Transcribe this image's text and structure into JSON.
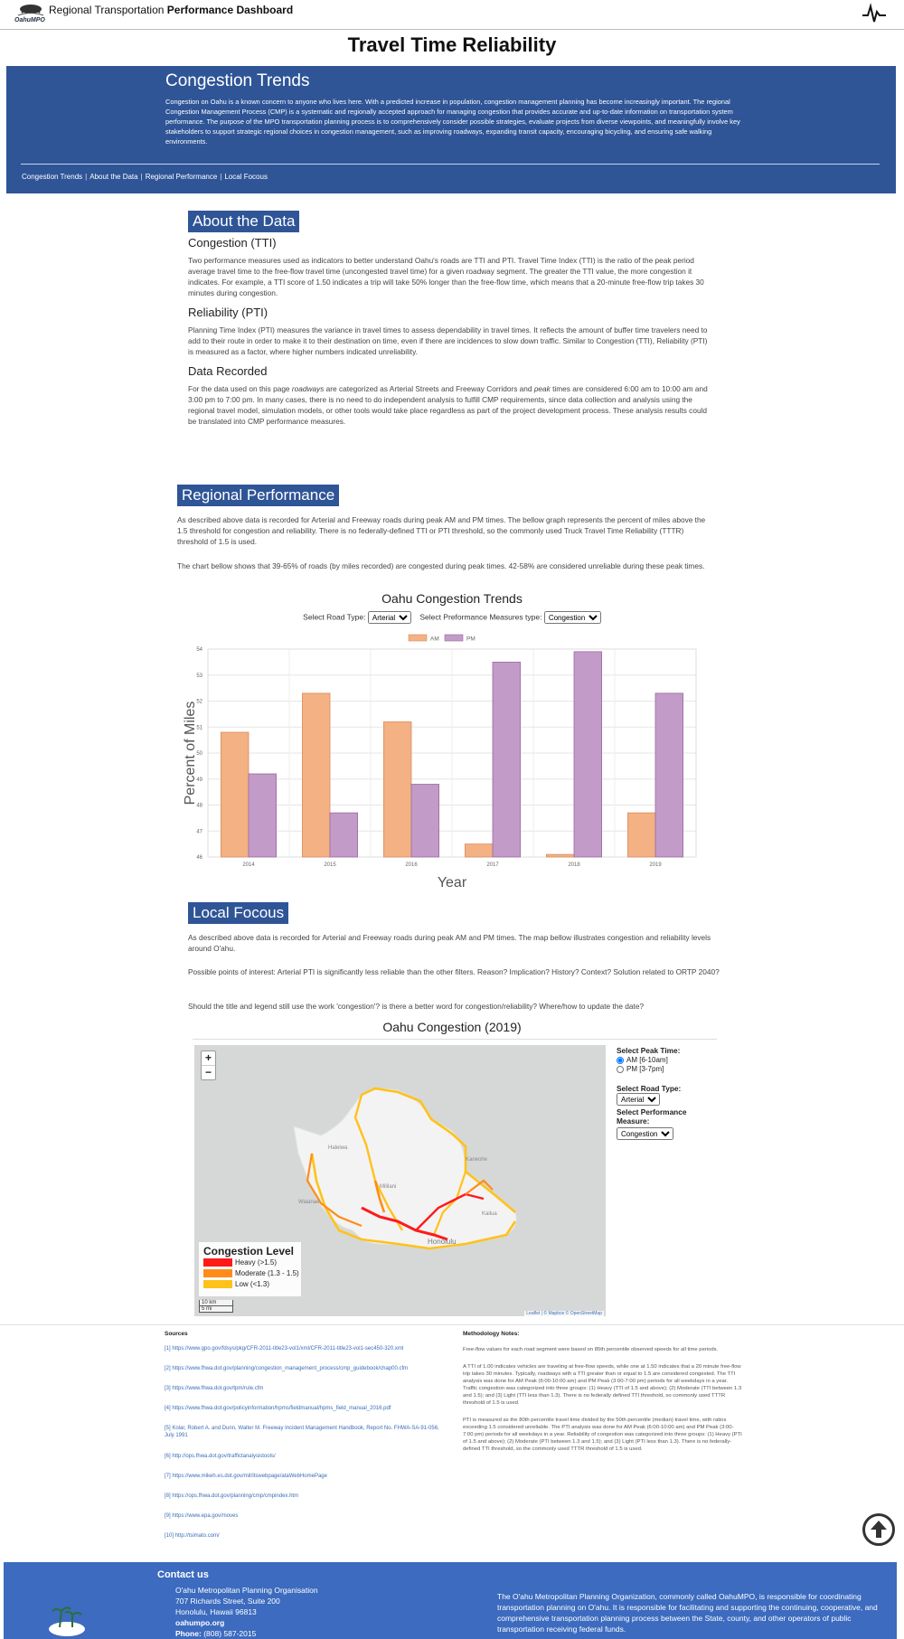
{
  "header": {
    "logo_text": "OahuMPO",
    "title_prefix": "Regional Transportation",
    "title_bold": "Performance Dashboard",
    "page_title": "Travel Time Reliability"
  },
  "hero": {
    "title": "Congestion Trends",
    "body": "Congestion on Oahu is a known concern to anyone who lives here. With a predicted increase in population, congestion management planning has become increasingly important. The regional Congestion Management Process (CMP) is a systematic and regionally accepted approach for managing congestion that provides accurate and up-to-date information on transportation system performance. The purpose of the MPO transportation planning process is to comprehensively consider possible strategies, evaluate projects from diverse viewpoints, and meaningfully involve key stakeholders to support strategic regional choices in congestion management, such as improving roadways, expanding transit capacity, encouraging bicycling, and ensuring safe walking environments.",
    "nav": [
      "Congestion Trends",
      "About the Data",
      "Regional Performance",
      "Local Focous"
    ]
  },
  "about": {
    "heading": "About the Data",
    "tti_title": "Congestion (TTI)",
    "tti_text": "Two performance measures used as indicators to better understand Oahu's roads are TTI and PTI.  Travel Time Index (TTI) is the ratio of the peak period average travel time to the free-flow travel time (uncongested travel time) for a given roadway segment.  The greater the TTI value, the more congestion it indicates. For example, a TTI score of 1.50 indicates a trip will take 50% longer than the free-flow time, which means that a 20-minute free-flow trip takes 30 minutes during congestion.",
    "pti_title": "Reliability (PTI)",
    "pti_text": "Planning Time Index (PTI) measures the variance in travel times to assess dependability in travel times. It reflects the amount of buffer time travelers need to add to their route in order to make it to their destination on time, even if there are incidences to slow down traffic. Similar to Congestion (TTI), Reliability (PTI) is measured as a factor, where higher numbers indicated unreliability.",
    "data_title": "Data Recorded",
    "data_text_a": "For the data used on this page ",
    "data_text_b": "roadways",
    "data_text_c": " are categorized as Arterial Streets and Freeway Corridors and ",
    "data_text_d": "peak",
    "data_text_e": " times are considered 6:00 am to 10:00 am and 3:00 pm to 7:00 pm.  In many cases, there is no need to do independent analysis to fulfill CMP requirements, since data collection and analysis using the regional travel model, simulation models, or other tools would take place regardless as part of the project development process. These analysis results could be translated into CMP performance measures."
  },
  "regional": {
    "heading": "Regional Performance",
    "p1": "As described above data is recorded for Arterial and Freeway roads during peak AM and PM times. The bellow graph represents the percent of miles above the 1.5 threshold for congestion and reliability. There is no federally-defined TTI or PTI threshold, so the commonly used Truck Travel Time Reliability (TTTR) threshold of 1.5 is used.",
    "p2": "The chart bellow shows that 39-65% of roads (by miles recorded) are congested during peak times. 42-58% are considered unreliable during these peak times.",
    "road_label": "Select Road Type:",
    "road_value": "Arterial",
    "measure_label": "Select Preformance Measures type:",
    "measure_value": "Congestion"
  },
  "chart_data": {
    "type": "bar",
    "title": "Oahu Congestion Trends",
    "xlabel": "Year",
    "ylabel": "Percent of Miles",
    "categories": [
      "2014",
      "2015",
      "2016",
      "2017",
      "2018",
      "2019"
    ],
    "series": [
      {
        "name": "AM",
        "color": "#f4b183",
        "stroke": "#d98c5f",
        "values": [
          50.8,
          52.3,
          51.2,
          46.5,
          46.1,
          47.7
        ]
      },
      {
        "name": "PM",
        "color": "#c39bc8",
        "stroke": "#9a6aa0",
        "values": [
          49.2,
          47.7,
          48.8,
          53.5,
          53.9,
          52.3
        ]
      }
    ],
    "ylim": [
      46,
      54
    ],
    "yticks": [
      "46",
      "47",
      "48",
      "49",
      "50",
      "51",
      "52",
      "53",
      "54"
    ],
    "grid": true,
    "legend": "top-center"
  },
  "local": {
    "heading": "Local Focous",
    "p1": "As described above data is recorded for Arterial and Freeway roads during peak AM and PM times. The map bellow illustrates congestion and reliability levels around O'ahu.",
    "p2": "Possible points of interest: Arterial PTI is significantly less reliable than the other filters. Reason? Implication? History? Context? Solution related to ORTP 2040?",
    "p3": "Should the title and legend still use the work 'congestion'? is there a better word for congestion/reliability? Where/how to update the date?",
    "map_title": "Oahu Congestion (2019)",
    "zoom_in": "+",
    "zoom_out": "−",
    "legend_title": "Congestion Level",
    "legend_items": [
      {
        "label": "Heavy (>1.5)",
        "color": "#ff1a1a"
      },
      {
        "label": "Moderate (1.3 - 1.5)",
        "color": "#ff8c1a"
      },
      {
        "label": "Low (<1.3)",
        "color": "#ffc21a"
      }
    ],
    "scale_km": "10 km",
    "scale_mi": "5 mi",
    "attribution": "Leaflet | © Mapbox © OpenStreetMap",
    "place_labels": [
      "Haleiwa",
      "Kaneohe",
      "Mililani",
      "Waianae",
      "Honolulu",
      "Kailua"
    ],
    "peak_label": "Select Peak Time:",
    "peak_am": "AM [6-10am]",
    "peak_pm": "PM [3-7pm]",
    "road_label": "Select Road Type:",
    "road_value": "Arterial",
    "measure_label": "Select Performance Measure:",
    "measure_value": "Congestion"
  },
  "sources": {
    "title": "Sources",
    "items": [
      "[1] https://www.gpo.gov/fdsys/pkg/CFR-2011-title23-vol1/xml/CFR-2011-title23-vol1-sec450-320.xml",
      "[2] https://www.fhwa.dot.gov/planning/congestion_management_process/cmp_guidebook/chap00.cfm",
      "[3] https://www.fhwa.dot.gov/tpm/rule.cfm",
      "[4] https://www.fhwa.dot.gov/policyinformation/hpms/fieldmanual/hpms_field_manual_2016.pdf",
      "[5] Kolar, Robert A. and Dunn, Walter M. Freeway Incident Management Handbook, Report No. FHWA-SA-91-056, July 1991",
      "[6] http://ops.fhwa.dot.gov/traffictanalysistools/",
      "[7] https://www.mikeh.es.dot.gov/mit/itswebpage/ataWebHomePage",
      "[8] https://ops.fhwa.dot.gov/planning/cmp/cmpindex.htm",
      "[9] https://www.epa.gov/moves",
      "[10] http://tsimato.com/"
    ]
  },
  "methodology": {
    "title": "Methodology Notes:",
    "p1": "Free-flow values for each road segment were based on 85th percentile observed speeds for all time periods.",
    "p2": "A TTI of 1.00 indicates vehicles are traveling at free-flow speeds, while one at 1.50 indicates that a 20 minute free-flow trip takes 30 minutes. Typically, roadways with a TTI greater than or equal to 1.5 are considered congested. The TTI analysis was done for AM Peak (6:00-10:00 am) and PM Peak (3:00-7:00 pm) periods for all weekdays in a year. Traffic congestion was categorized into three groups: (1) Heavy (TTI of 1.5 and above); (2) Moderate (TTI between 1.3 and 1.5); and (3) Light (TTI less than 1.3). There is no federally defined TTI threshold, so commonly used TTTR threshold of 1.5 is used.",
    "p3": "PTI is measured as the 80th percentile travel time divided by the 50th percentile (median) travel time, with ratios exceeding 1.5 considered unreliable. The PTI analysis was done for AM Peak (6:00-10:00 am) and PM Peak (3:00-7:00 pm) periods for all weekdays in a year. Reliability of congestion was categorized into three groups: (1) Heavy (PTI of 1.5 and above); (2) Moderate (PTI between 1.3 and 1.5); and (3) Light (PTI less than 1.3). There is no federally-defined TTI threshold, so the commonly used TTTR threshold of 1.5 is used."
  },
  "footer": {
    "contact_title": "Contact us",
    "org": "O'ahu Metropolitan Planning Organisation",
    "street": "707 Richards Street, Suite 200",
    "city": "Honolulu, Hawaii 96813",
    "web": "oahumpo.org",
    "phone_label": "Phone:",
    "phone": "(808) 587-2015",
    "about": "The O'ahu Metropolitan Planning Organization, commonly called OahuMPO, is responsible for coordinating transportation planning on O'ahu. It is responsible for facilitating and supporting the continuing, cooperative, and comprehensive transportation planning process between the State, county, and other operators of public transportation receiving federal funds."
  }
}
